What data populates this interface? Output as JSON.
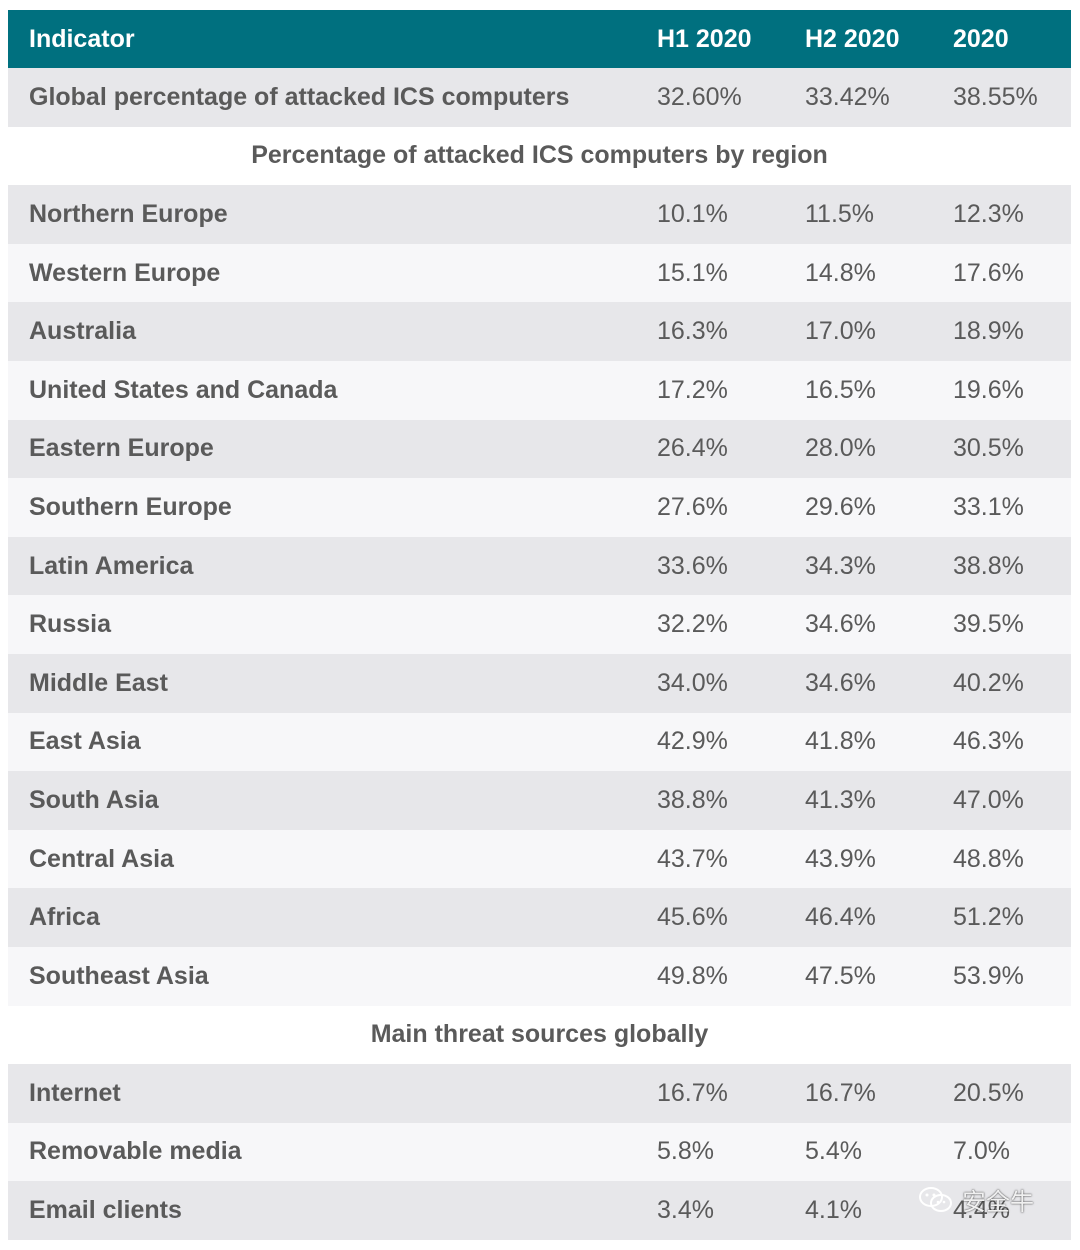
{
  "chart_data": {
    "type": "table",
    "header": {
      "indicator": "Indicator",
      "columns": [
        "H1 2020",
        "H2 2020",
        "2020"
      ]
    },
    "global": {
      "label": "Global percentage of attacked ICS computers",
      "values": [
        "32.60%",
        "33.42%",
        "38.55%"
      ]
    },
    "region_section_title": "Percentage of attacked ICS computers by region",
    "regions": [
      {
        "label": "Northern Europe",
        "values": [
          "10.1%",
          "11.5%",
          "12.3%"
        ]
      },
      {
        "label": "Western Europe",
        "values": [
          "15.1%",
          "14.8%",
          "17.6%"
        ]
      },
      {
        "label": "Australia",
        "values": [
          "16.3%",
          "17.0%",
          "18.9%"
        ]
      },
      {
        "label": "United States and Canada",
        "values": [
          "17.2%",
          "16.5%",
          "19.6%"
        ]
      },
      {
        "label": "Eastern Europe",
        "values": [
          "26.4%",
          "28.0%",
          "30.5%"
        ]
      },
      {
        "label": "Southern Europe",
        "values": [
          "27.6%",
          "29.6%",
          "33.1%"
        ]
      },
      {
        "label": "Latin America",
        "values": [
          "33.6%",
          "34.3%",
          "38.8%"
        ]
      },
      {
        "label": "Russia",
        "values": [
          "32.2%",
          "34.6%",
          "39.5%"
        ]
      },
      {
        "label": "Middle East",
        "values": [
          "34.0%",
          "34.6%",
          "40.2%"
        ]
      },
      {
        "label": "East Asia",
        "values": [
          "42.9%",
          "41.8%",
          "46.3%"
        ]
      },
      {
        "label": "South Asia",
        "values": [
          "38.8%",
          "41.3%",
          "47.0%"
        ]
      },
      {
        "label": "Central Asia",
        "values": [
          "43.7%",
          "43.9%",
          "48.8%"
        ]
      },
      {
        "label": "Africa",
        "values": [
          "45.6%",
          "46.4%",
          "51.2%"
        ]
      },
      {
        "label": "Southeast Asia",
        "values": [
          "49.8%",
          "47.5%",
          "53.9%"
        ]
      }
    ],
    "threat_section_title": "Main threat sources globally",
    "threats": [
      {
        "label": "Internet",
        "values": [
          "16.7%",
          "16.7%",
          "20.5%"
        ]
      },
      {
        "label": "Removable media",
        "values": [
          "5.8%",
          "5.4%",
          "7.0%"
        ]
      },
      {
        "label": "Email clients",
        "values": [
          "3.4%",
          "4.1%",
          "4.4%"
        ]
      }
    ]
  },
  "watermark": {
    "text": "安全牛",
    "icon": "wechat-icon"
  },
  "colors": {
    "header_bg": "#00707f",
    "row_shade": "#e7e7ea",
    "row_light": "#f7f7f9",
    "text": "#5a5a5a"
  }
}
